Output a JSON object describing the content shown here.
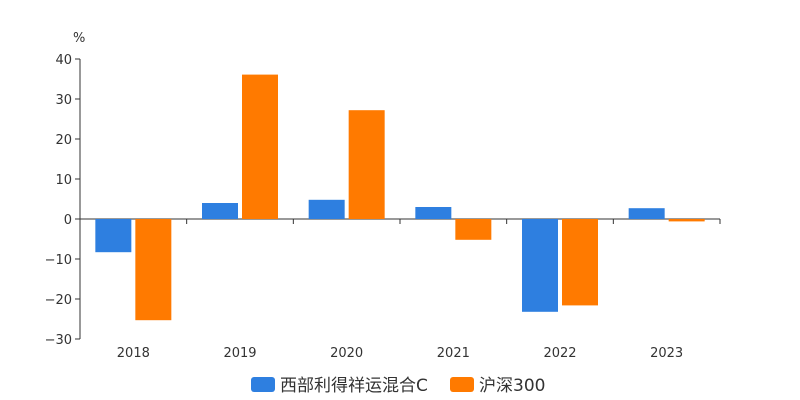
{
  "chart_data": {
    "type": "bar",
    "unit": "%",
    "categories": [
      "2018",
      "2019",
      "2020",
      "2021",
      "2022",
      "2023"
    ],
    "series": [
      {
        "name": "西部利得祥运混合C",
        "color": "#2e7fe0",
        "values": [
          -8.3,
          4.0,
          4.8,
          3.0,
          -23.2,
          2.7
        ]
      },
      {
        "name": "沪深300",
        "color": "#ff7a00",
        "values": [
          -25.3,
          36.1,
          27.2,
          -5.2,
          -21.6,
          -0.6
        ]
      }
    ],
    "ylim": [
      -30,
      40
    ],
    "yticks": [
      40,
      30,
      20,
      10,
      0,
      -10,
      -20,
      -30
    ],
    "legend": "bottom",
    "grid": false
  }
}
